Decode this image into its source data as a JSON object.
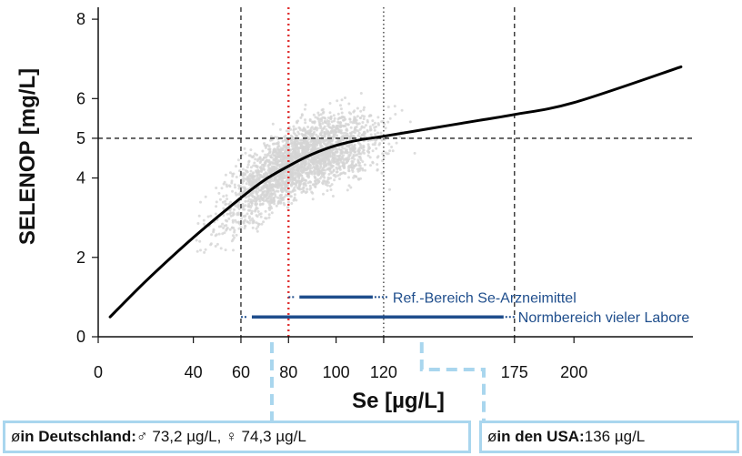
{
  "chart_data": {
    "type": "line",
    "xlabel": "Se [µg/L]",
    "ylabel": "SELENOP [mg/L]",
    "x_ticks": [
      0,
      40,
      60,
      80,
      100,
      120,
      175,
      200
    ],
    "y_ticks": [
      0,
      2,
      4,
      5,
      6,
      8
    ],
    "xlim": [
      0,
      250
    ],
    "ylim": [
      0,
      8.3
    ],
    "series": [
      {
        "x": [
          5,
          20,
          40,
          60,
          70,
          80,
          90,
          100,
          110,
          120,
          140,
          160,
          175,
          200,
          245
        ],
        "values": [
          0.5,
          1.4,
          2.5,
          3.5,
          3.95,
          4.3,
          4.6,
          4.82,
          4.96,
          5.05,
          5.25,
          5.45,
          5.6,
          5.9,
          6.8
        ]
      }
    ],
    "scatter_background": true,
    "reference_lines": {
      "vertical_dashed": [
        60,
        175
      ],
      "vertical_dotted": [
        120
      ],
      "vertical_red_dotted": [
        80
      ],
      "horizontal_dashed": [
        5
      ]
    },
    "ranges": [
      {
        "label": "Ref.-Bereich Se-Arzneimittel",
        "from": 80,
        "to": 120,
        "y": 1.0
      },
      {
        "label": "Normbereich vieler Labore",
        "from": 60,
        "to": 175,
        "y": 0.5
      }
    ],
    "colors": {
      "curve": "#000000",
      "scatter": "#d4d4d4",
      "red_line": "#e03030",
      "range": "#1f4e8c",
      "connector": "#a9d6ee"
    }
  },
  "notes": {
    "germany": {
      "prefix": "ø ",
      "bold": "in Deutschland:",
      "text": " ♂ 73,2 µg/L, ♀ 74,3 µg/L",
      "x_value": 73
    },
    "usa": {
      "prefix": "ø ",
      "bold": "in den USA:",
      "text": " 136 µg/L",
      "x_value": 136
    }
  }
}
